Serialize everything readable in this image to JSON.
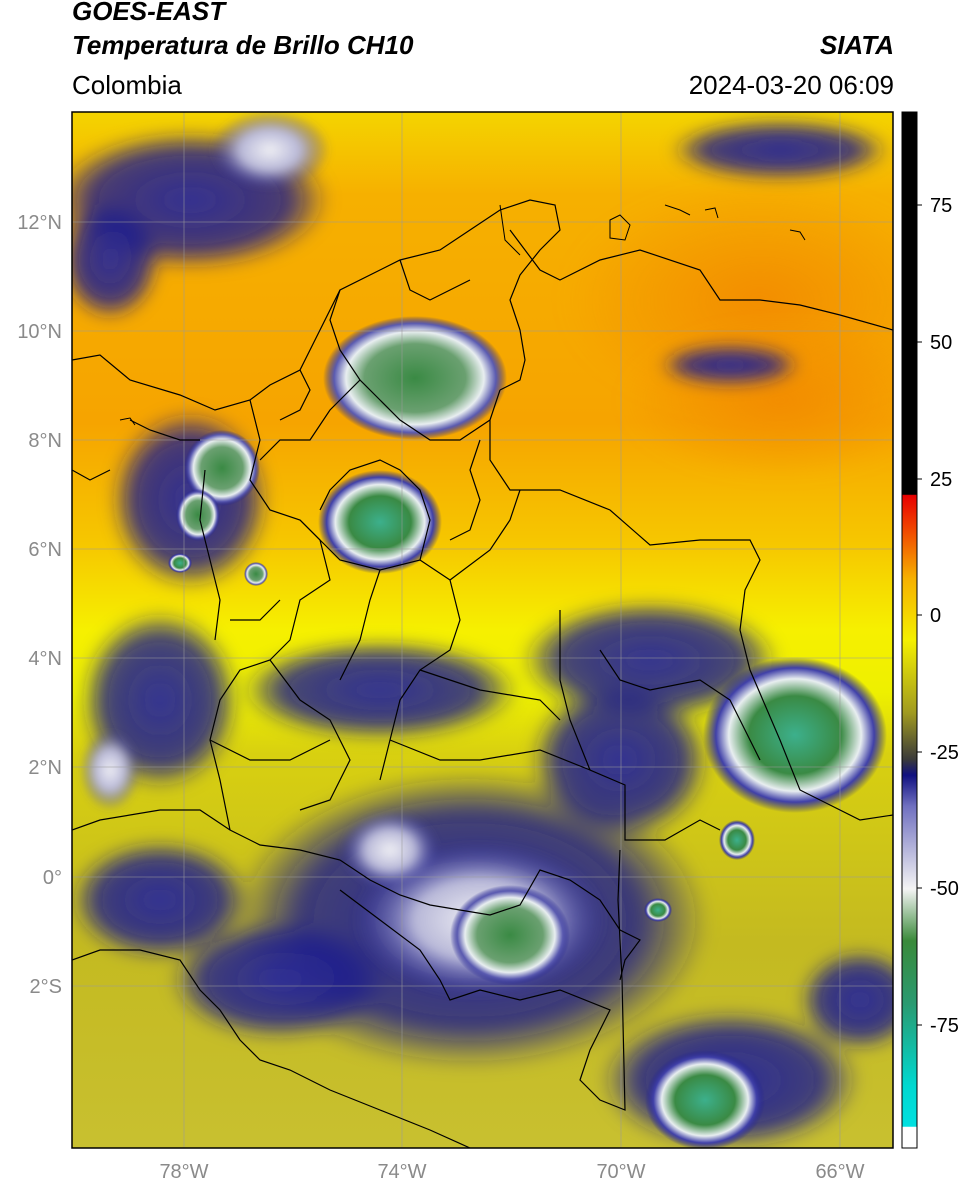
{
  "header": {
    "satellite": "GOES-EAST",
    "product": "Temperatura de Brillo CH10",
    "region": "Colombia",
    "source": "SIATA",
    "datetime": "2024-03-20 06:09"
  },
  "map": {
    "lat_labels": [
      "12°N",
      "10°N",
      "8°N",
      "6°N",
      "4°N",
      "2°N",
      "0°",
      "2°S"
    ],
    "lon_labels": [
      "78°W",
      "74°W",
      "70°W",
      "66°W"
    ]
  },
  "colorbar": {
    "ticks": [
      "75",
      "50",
      "25",
      "0",
      "-25",
      "-50",
      "-75"
    ]
  },
  "colors": {
    "ocean_orange": "#f6a000",
    "warm_yellow": "#f4ea00",
    "olive": "#c8bc1c",
    "cold_navy": "#1c1c8c",
    "cloud_white": "#e8e8f0",
    "deep_green": "#3a8a44",
    "teal": "#3cb08c"
  }
}
